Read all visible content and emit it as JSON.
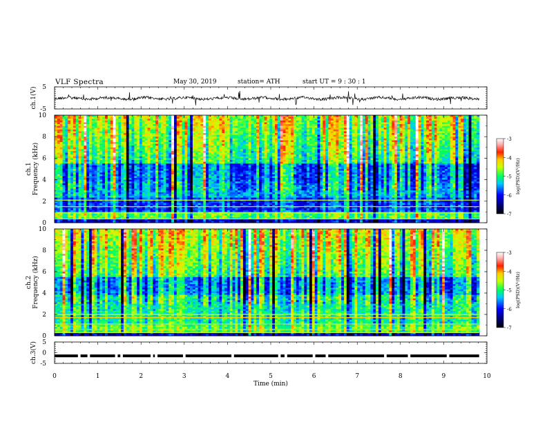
{
  "header": {
    "title": "VLF  Spectra",
    "date": "May 30, 2019",
    "station": "station= ATH",
    "start": "start  UT  =   9  : 30 : 1"
  },
  "chart_data": [
    {
      "type": "line",
      "panel": "ch1-waveform",
      "ylabel": "ch.1(V)",
      "ylim": [
        -5,
        5
      ],
      "yticks": [
        "5",
        "-5"
      ],
      "xlim": [
        0,
        10
      ],
      "x_end": 9.82,
      "baseline": -0.2,
      "color": "#000000"
    },
    {
      "type": "heatmap",
      "panel": "ch1-spectrogram",
      "ylabel": "ch.1\nFrequency (kHz)",
      "ylim": [
        0,
        10
      ],
      "yticks": [
        "0",
        "2",
        "4",
        "6",
        "8",
        "10"
      ],
      "xlim": [
        0,
        10
      ],
      "x_end": 9.82,
      "colorbar": {
        "label": "log(PSD)(V²/Hz)",
        "range": [
          -7,
          -3
        ],
        "ticks": [
          "-3",
          "-4",
          "-5",
          "-6",
          "-7"
        ]
      }
    },
    {
      "type": "heatmap",
      "panel": "ch2-spectrogram",
      "ylabel": "ch.2\nFrequency (kHz)",
      "ylim": [
        0,
        10
      ],
      "yticks": [
        "0",
        "2",
        "4",
        "6",
        "8",
        "10"
      ],
      "xlim": [
        0,
        10
      ],
      "x_end": 9.82,
      "colorbar": {
        "label": "log(PSD)(V²/Hz)",
        "range": [
          -7,
          -3
        ],
        "ticks": [
          "-3",
          "-4",
          "-5",
          "-6",
          "-7"
        ]
      }
    },
    {
      "type": "line",
      "panel": "ch3-waveform",
      "ylabel": "ch.3(V)",
      "ylim": [
        -5,
        5
      ],
      "yticks": [
        "5",
        "0",
        "-5"
      ],
      "xlim": [
        0,
        10
      ],
      "x_end": 9.82,
      "baseline": -1.5,
      "gaps_min": [
        0.57,
        0.79,
        1.43,
        1.55,
        2.25,
        2.35,
        3.0,
        4.12,
        5.2,
        5.35,
        6.0,
        6.3,
        7.65,
        8.2,
        9.1
      ],
      "color": "#000000"
    }
  ],
  "xaxis": {
    "label": "Time  (min)",
    "ticks": [
      "0",
      "1",
      "2",
      "3",
      "4",
      "5",
      "6",
      "7",
      "8",
      "9",
      "10"
    ]
  }
}
